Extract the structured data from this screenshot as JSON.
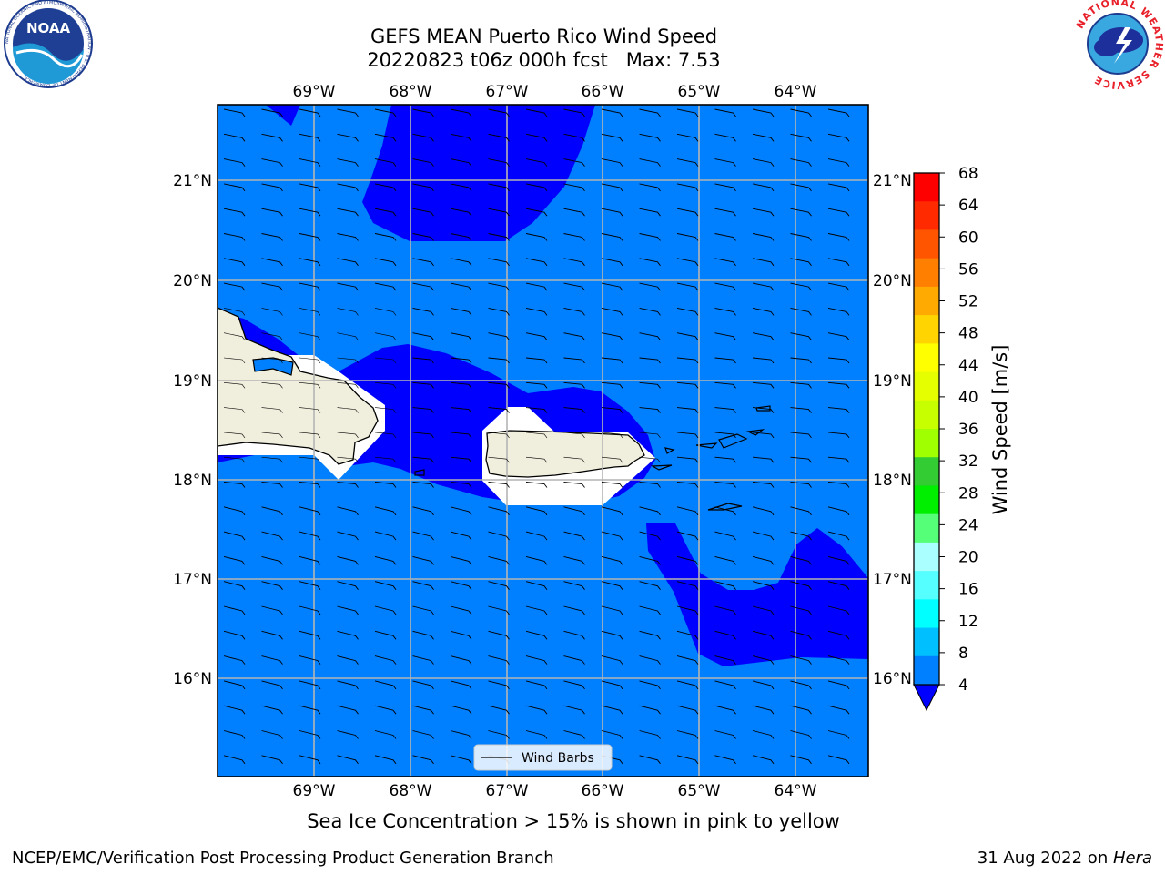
{
  "header": {
    "title_line1": "GEFS MEAN Puerto Rico Wind Speed",
    "title_line2": "20220823 t06z 000h fcst   Max: 7.53"
  },
  "logos": {
    "left": "NOAA",
    "left_ring": "NATIONAL OCEANIC AND ATMOSPHERIC ADMINISTRATION · U.S. DEPARTMENT OF COMMERCE",
    "right_ring": "NATIONAL WEATHER SERVICE"
  },
  "map": {
    "lon_labels": [
      "69°W",
      "68°W",
      "67°W",
      "66°W",
      "65°W",
      "64°W"
    ],
    "lat_labels": [
      "21°N",
      "20°N",
      "19°N",
      "18°N",
      "17°N",
      "16°N"
    ],
    "legend_label": "Wind Barbs",
    "colors": {
      "ocean_4_8": "#0080ff",
      "ocean_lt4": "#0000ff",
      "land": "#f0eedc",
      "grid": "#b4b4b4"
    }
  },
  "colorbar": {
    "label": "Wind Speed [m/s]",
    "ticks": [
      "68",
      "64",
      "60",
      "56",
      "52",
      "48",
      "44",
      "40",
      "36",
      "32",
      "28",
      "24",
      "20",
      "16",
      "12",
      "8",
      "4"
    ],
    "colors": [
      "#ff0000",
      "#ff2a00",
      "#ff5500",
      "#ff8000",
      "#ffaa00",
      "#ffd400",
      "#ffff00",
      "#e6ff00",
      "#c8ff00",
      "#a0ff00",
      "#33cc33",
      "#00ee00",
      "#55ff77",
      "#aaffff",
      "#55ffff",
      "#00ffff",
      "#00bfff",
      "#0080ff"
    ],
    "under_color": "#0000ff"
  },
  "caption": "Sea Ice Concentration > 15% is shown in pink to yellow",
  "footer": {
    "left": "NCEP/EMC/Verification Post Processing Product Generation Branch",
    "right_date": "31 Aug 2022 on ",
    "right_host": "Hera"
  }
}
